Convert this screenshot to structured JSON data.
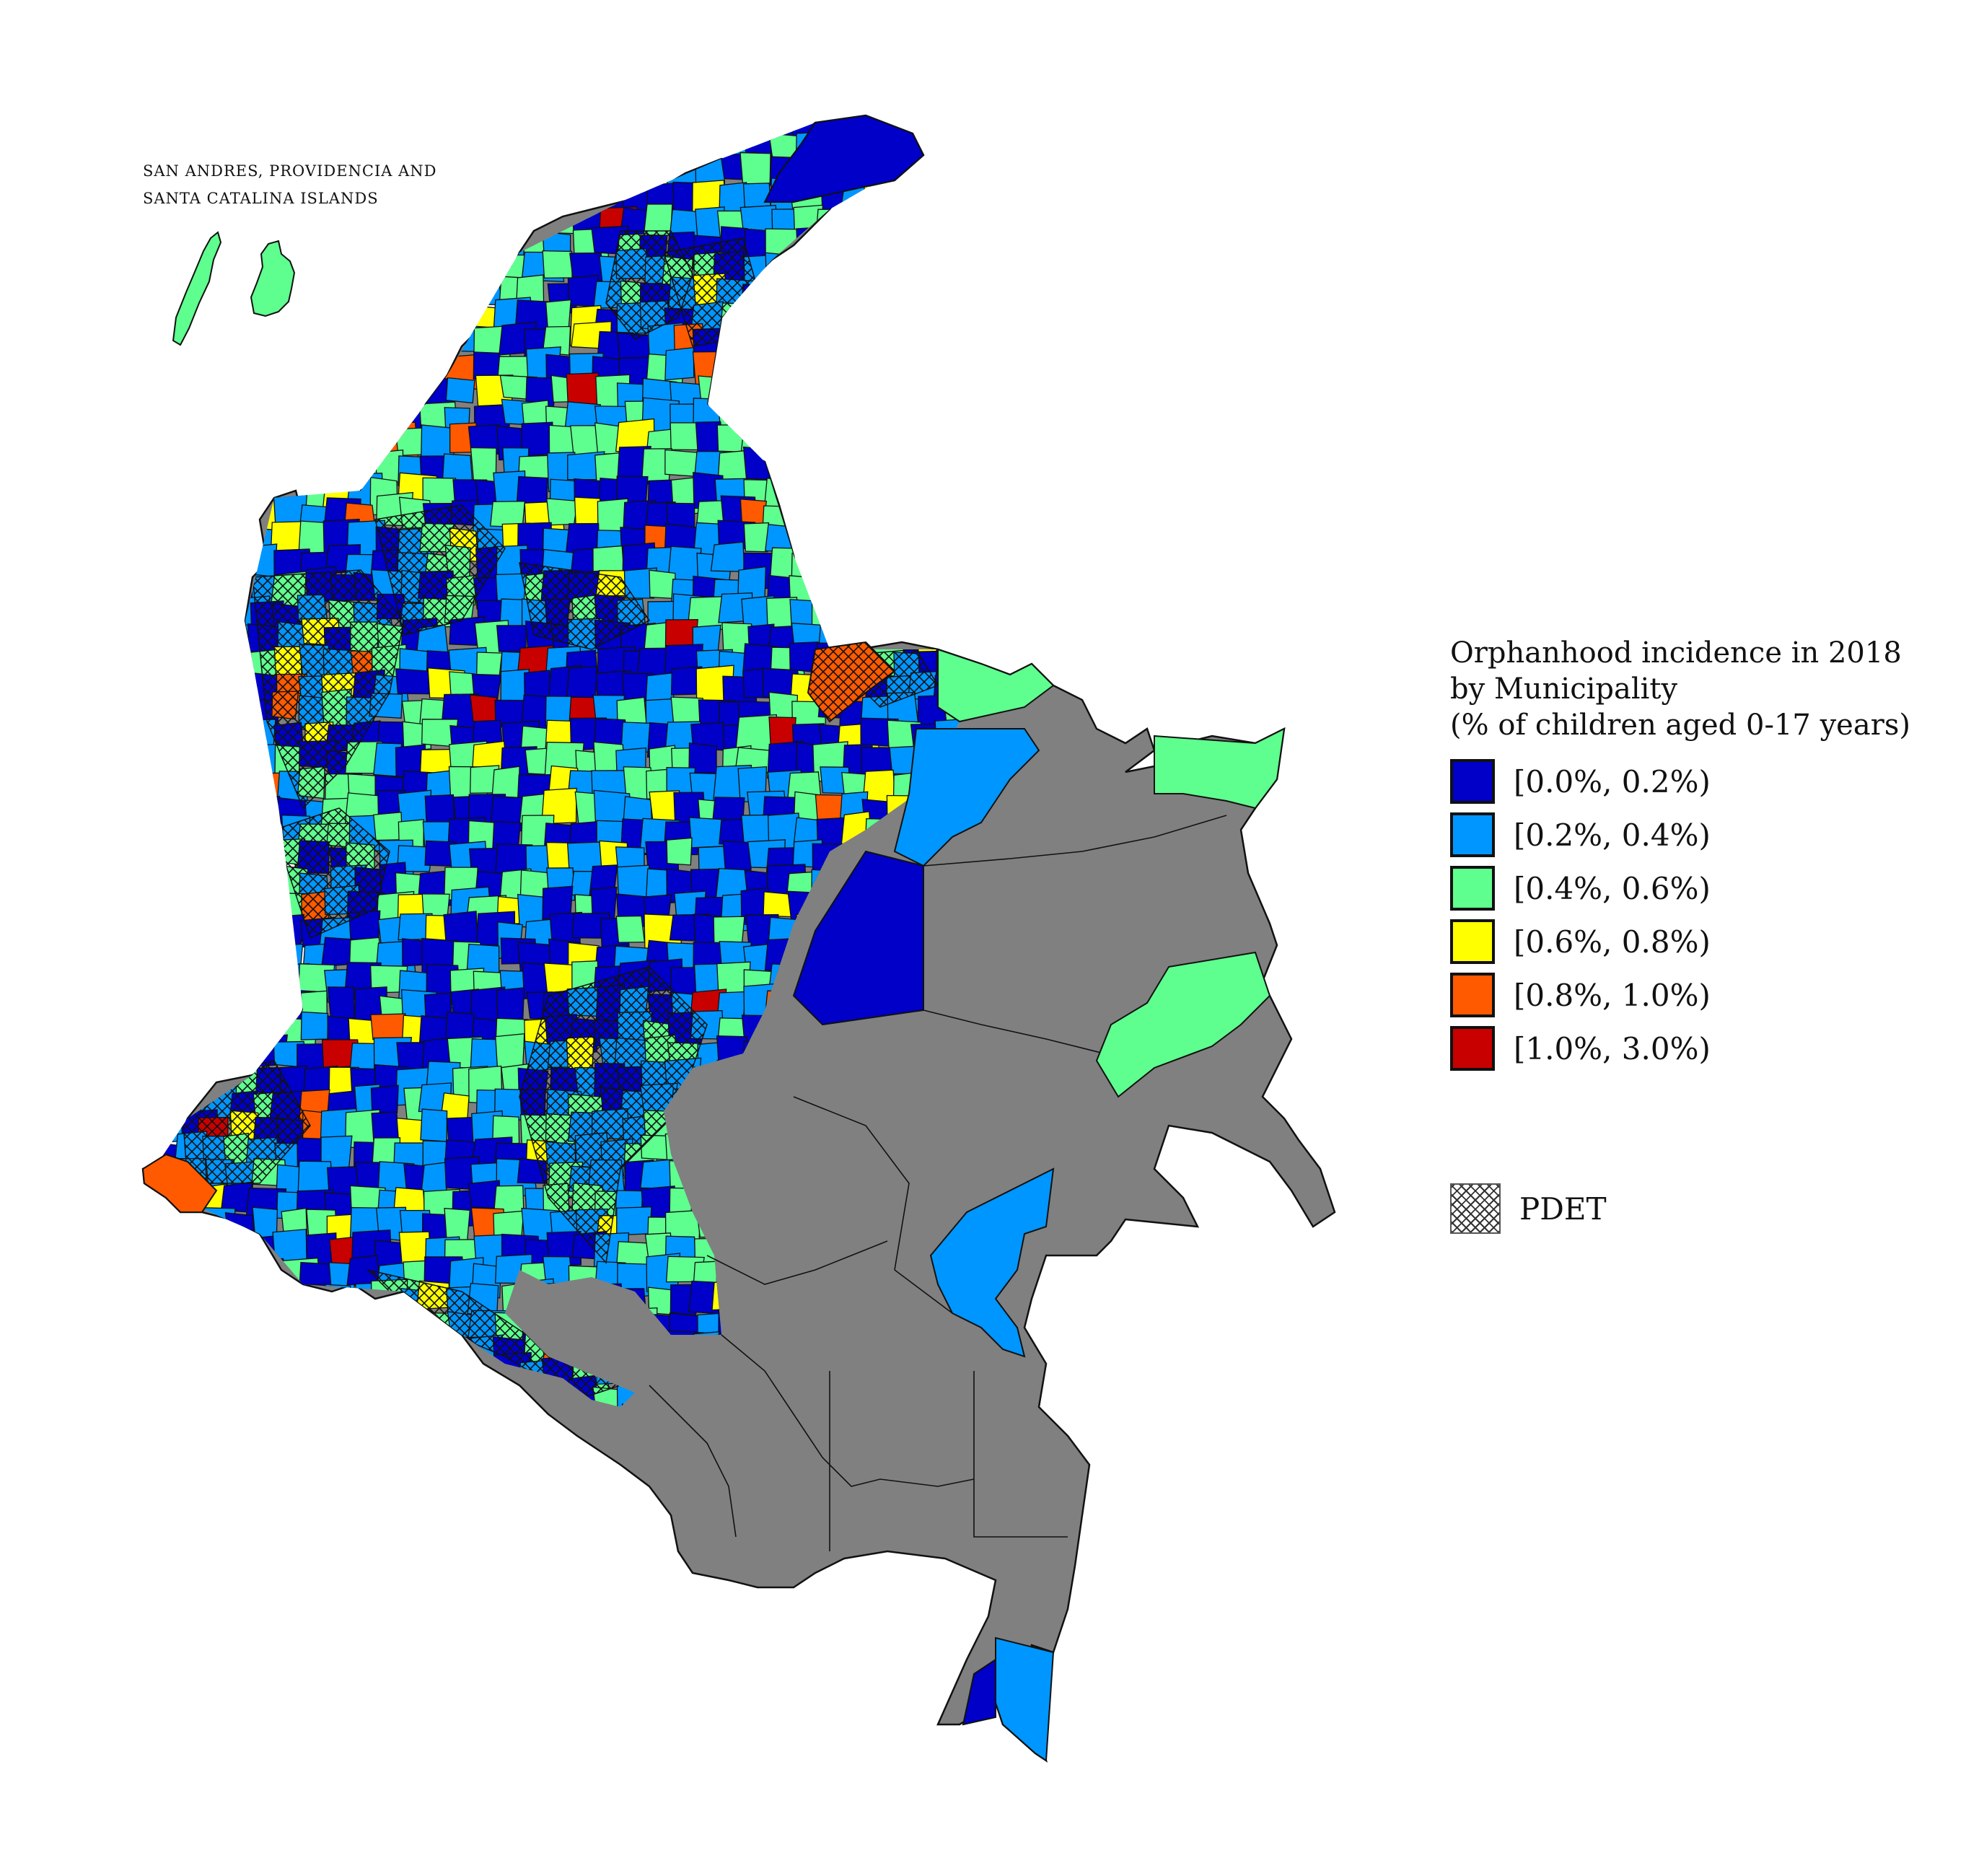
{
  "island_caption": {
    "line1": "SAN ANDRES, PROVIDENCIA AND",
    "line2": "SANTA CATALINA ISLANDS"
  },
  "legend": {
    "title_line1": "Orphanhood incidence in 2018",
    "title_line2": "by Municipality",
    "title_line3": "(% of children aged 0-17 years)",
    "classes": [
      {
        "label": "[0.0%, 0.2%)",
        "color": "#0000c8"
      },
      {
        "label": "[0.2%, 0.4%)",
        "color": "#0096ff"
      },
      {
        "label": "[0.4%, 0.6%)",
        "color": "#5fff8f"
      },
      {
        "label": "[0.6%, 0.8%)",
        "color": "#ffff00"
      },
      {
        "label": "[0.8%, 1.0%)",
        "color": "#ff5a00"
      },
      {
        "label": "[1.0%, 3.0%)",
        "color": "#c80000"
      }
    ],
    "no_data_color": "#808080",
    "pdet_label": "PDET"
  }
}
